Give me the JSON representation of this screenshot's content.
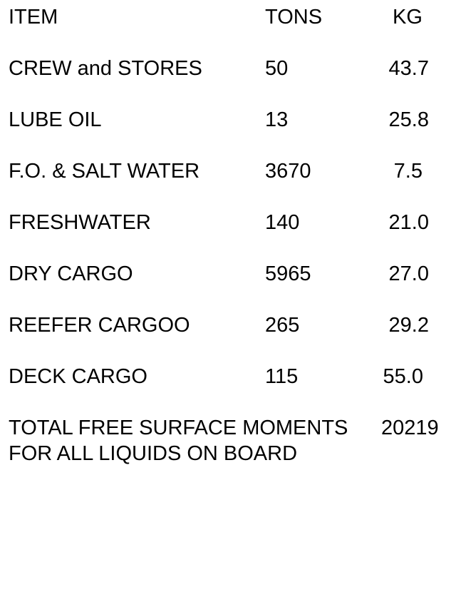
{
  "headers": {
    "item": "ITEM",
    "tons": "TONS",
    "kg": "KG"
  },
  "rows": [
    {
      "item": "CREW and STORES",
      "tons": "50",
      "kg": "43.7"
    },
    {
      "item": "LUBE OIL",
      "tons": "13",
      "kg": "25.8"
    },
    {
      "item": "F.O. & SALT WATER",
      "tons": "3670",
      "kg": "7.5"
    },
    {
      "item": "FRESHWATER",
      "tons": "140",
      "kg": "21.0"
    },
    {
      "item": "DRY CARGO",
      "tons": "5965",
      "kg": "27.0"
    },
    {
      "item": "REEFER CARGOO",
      "tons": "265",
      "kg": "29.2"
    },
    {
      "item": "DECK CARGO",
      "tons": "115",
      "kg": "55.0"
    }
  ],
  "total": {
    "label_line1": "TOTAL FREE SURFACE MOMENTS",
    "label_line2": "FOR ALL LIQUIDS ON BOARD",
    "value": "20219"
  }
}
